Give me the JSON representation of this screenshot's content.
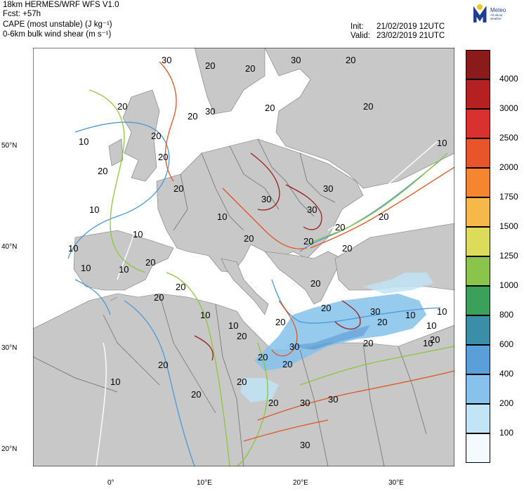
{
  "header": {
    "line1": "18km HERMES/WRF WFS V1.0",
    "line2": "Fcst: +57h",
    "line3": "CAPE (most unstable) (J kg⁻¹)",
    "line4": "0-6km bulk wind shear (m s⁻¹)",
    "init_label": "Init:",
    "init_value": "21/02/2019 12UTC",
    "valid_label": "Valid:",
    "valid_value": "23/02/2019 21UTC"
  },
  "logo": {
    "name": "Meteo",
    "tagline": "All about weather",
    "icon": "meteo-logo-icon"
  },
  "colorbar": {
    "labels": [
      "4000",
      "3000",
      "2500",
      "2000",
      "1750",
      "1500",
      "1250",
      "1000",
      "800",
      "600",
      "400",
      "200",
      "100"
    ],
    "colors": [
      "#8b1a1a",
      "#b52020",
      "#d93030",
      "#e8552a",
      "#f5852e",
      "#f7b84a",
      "#dcdc5a",
      "#8ac44a",
      "#3aa05a",
      "#3a8ea8",
      "#5a9fd8",
      "#86c2ec",
      "#c2e4f7",
      "#f4fafd"
    ]
  },
  "axes": {
    "lat_labels": [
      "50°N",
      "40°N",
      "30°N",
      "20°N"
    ],
    "lon_labels": [
      "0°",
      "10°E",
      "20°E",
      "30°E"
    ]
  },
  "shear_labels": [
    "30",
    "20",
    "20",
    "30",
    "20",
    "20",
    "30",
    "20",
    "20",
    "20",
    "20",
    "20",
    "10",
    "20",
    "10",
    "10",
    "20",
    "30",
    "30",
    "10",
    "20",
    "10",
    "10",
    "20",
    "20",
    "30",
    "20",
    "20",
    "20",
    "10",
    "10",
    "20",
    "20",
    "10",
    "10",
    "20",
    "20",
    "20",
    "20",
    "30",
    "20",
    "20",
    "30",
    "20",
    "10",
    "10",
    "20",
    "10",
    "10",
    "20",
    "20",
    "20",
    "20",
    "30",
    "30",
    "20",
    "10",
    "30"
  ],
  "colors": {
    "land": "#c8c8c8",
    "sea": "#ffffff",
    "border": "#555555",
    "contour_10": "#4a98d8",
    "contour_20": "#8cc63c",
    "contour_30": "#e05522"
  }
}
